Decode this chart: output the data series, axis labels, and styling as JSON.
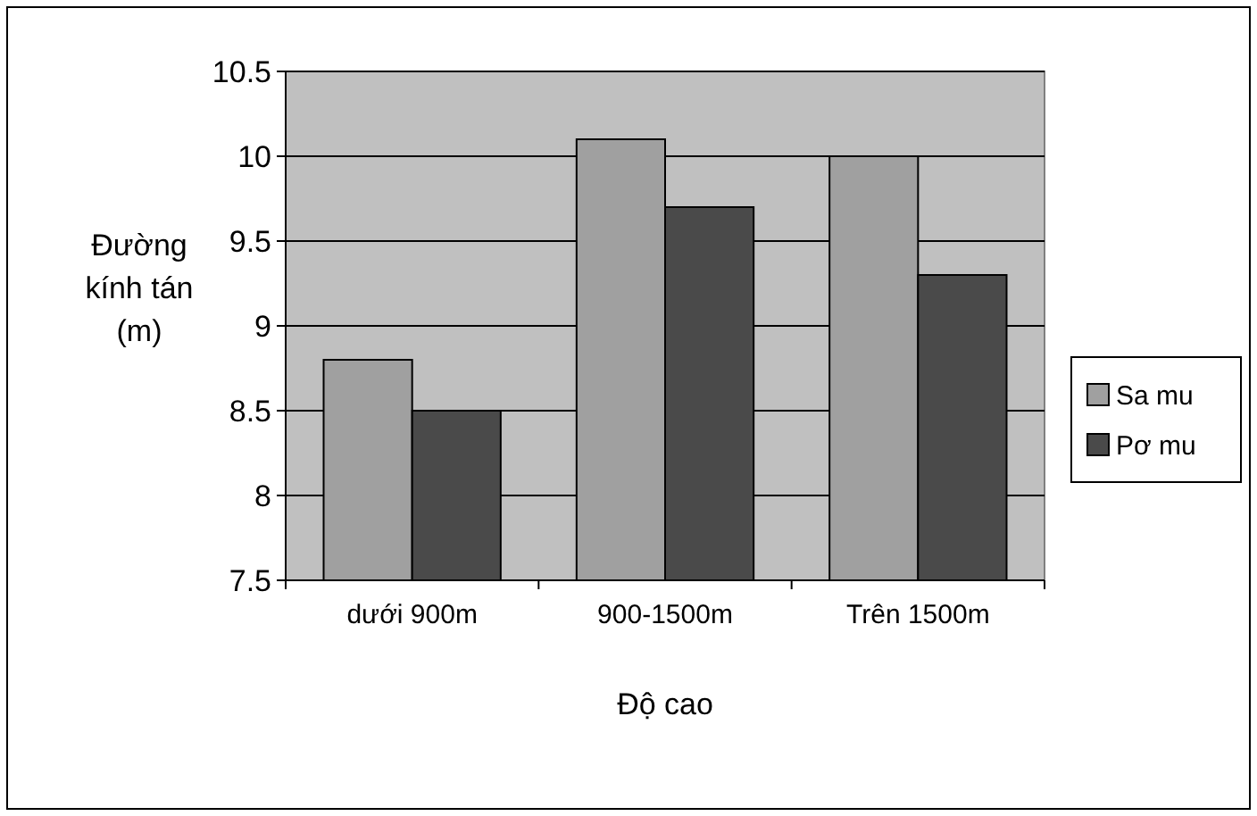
{
  "chart_data": {
    "type": "bar",
    "xlabel": "Độ cao",
    "ylabel": "Đường kính tán (m)",
    "categories": [
      "dưới 900m",
      "900-1500m",
      "Trên 1500m"
    ],
    "series": [
      {
        "name": "Sa mu",
        "color": "#a0a0a0",
        "values": [
          8.8,
          10.1,
          10.0
        ]
      },
      {
        "name": "Pơ mu",
        "color": "#4a4a4a",
        "values": [
          8.5,
          9.7,
          9.3
        ]
      }
    ],
    "ylim": [
      7.5,
      10.5
    ],
    "yticks": [
      7.5,
      8,
      8.5,
      9,
      9.5,
      10,
      10.5
    ],
    "grid": "y",
    "legend": "right"
  }
}
